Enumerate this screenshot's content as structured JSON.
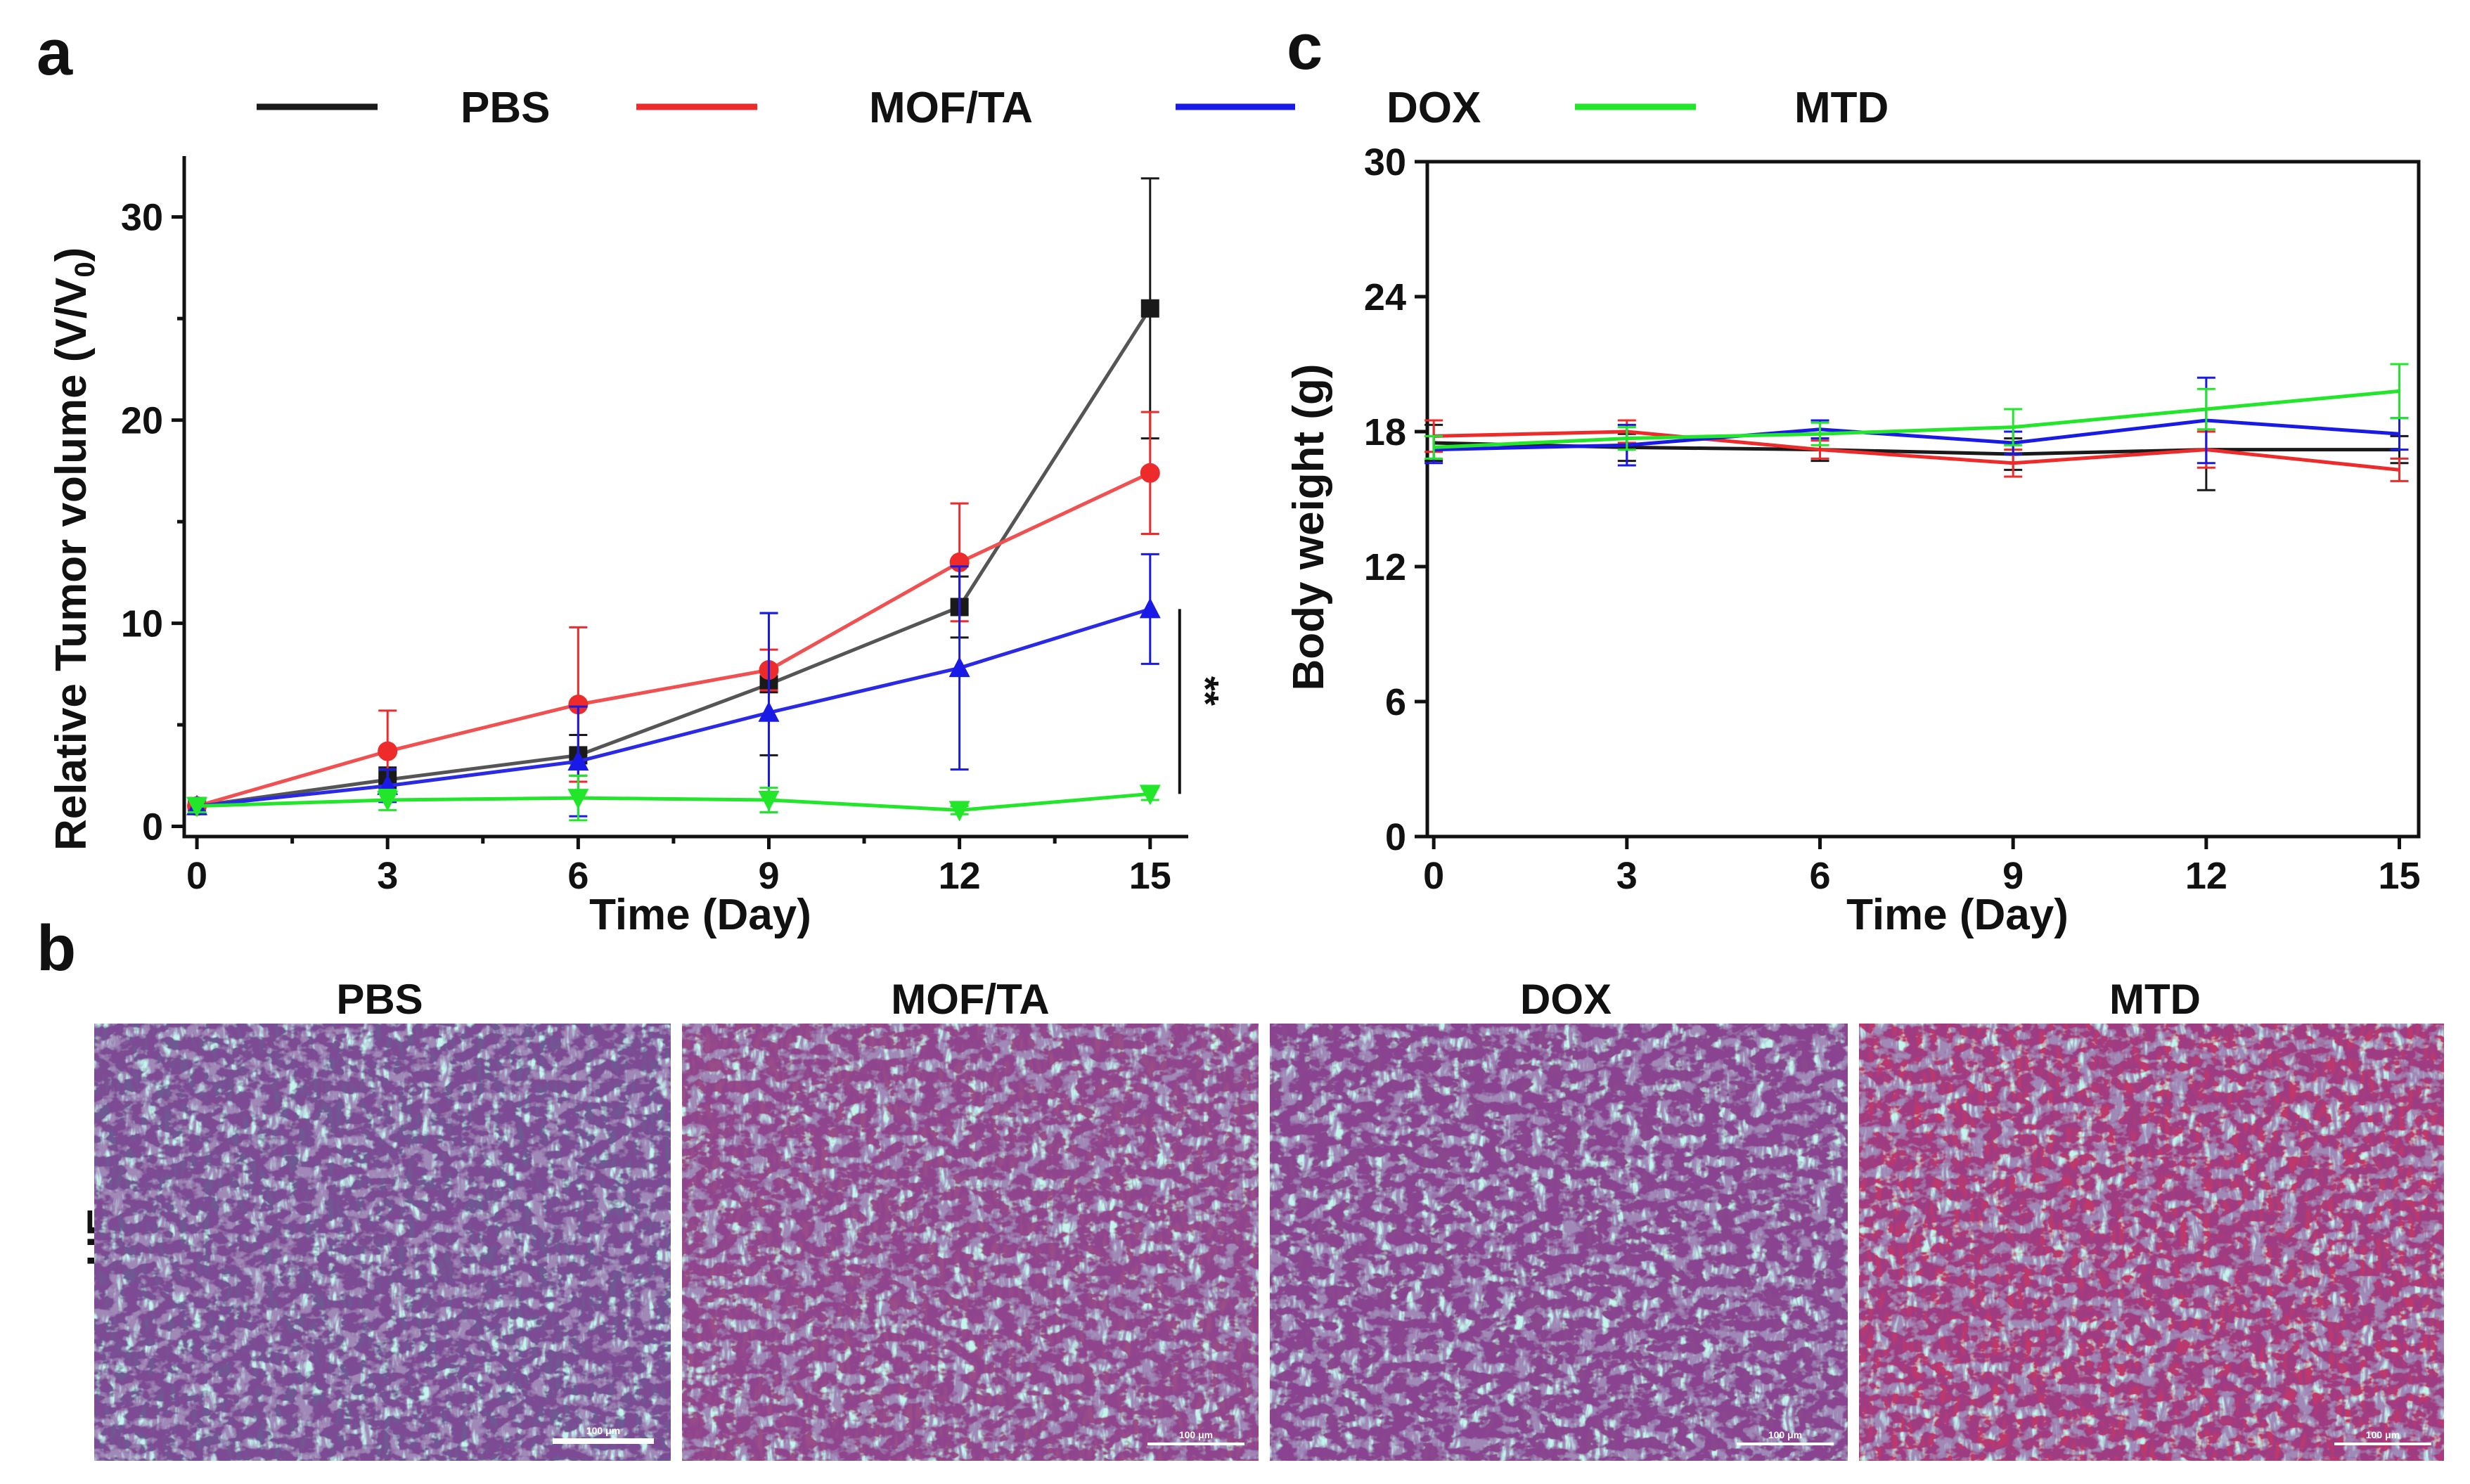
{
  "colors": {
    "PBS": "#1a1a1a",
    "MOF/TA": "#ee2b2b",
    "DOX": "#1a1ae6",
    "MTD": "#22e62a"
  },
  "panels": {
    "a": "a",
    "b": "b",
    "c": "c"
  },
  "legend": [
    "PBS",
    "MOF/TA",
    "DOX",
    "MTD"
  ],
  "chart_data": [
    {
      "id": "a",
      "type": "line",
      "xlabel": "Time (Day)",
      "ylabel_main": "Relative Tumor volume  (V/V",
      "ylabel_sub": "0",
      "ylabel_end": ")",
      "x": [
        0,
        3,
        6,
        9,
        12,
        15
      ],
      "xlim": [
        -0.2,
        15.6
      ],
      "ylim": [
        -0.5,
        33
      ],
      "xticks": [
        "0",
        "3",
        "6",
        "9",
        "12",
        "15"
      ],
      "yticks": [
        "0",
        "10",
        "20",
        "30"
      ],
      "ytick_values": [
        0,
        10,
        20,
        30
      ],
      "significance": "**",
      "series": [
        {
          "name": "PBS",
          "marker": "square",
          "values": [
            1.0,
            2.3,
            3.5,
            7.0,
            10.8,
            25.5
          ],
          "errors": [
            0.3,
            0.6,
            1.0,
            3.5,
            1.5,
            6.4
          ]
        },
        {
          "name": "MOF/TA",
          "marker": "circle",
          "values": [
            1.0,
            3.7,
            6.0,
            7.7,
            13.0,
            17.4
          ],
          "errors": [
            0.3,
            2.0,
            3.8,
            1.0,
            2.9,
            3.0
          ]
        },
        {
          "name": "DOX",
          "marker": "triangle-up",
          "values": [
            1.0,
            2.0,
            3.2,
            5.6,
            7.8,
            10.7
          ],
          "errors": [
            0.3,
            0.8,
            2.7,
            4.9,
            5.0,
            2.7
          ]
        },
        {
          "name": "MTD",
          "marker": "triangle-down",
          "values": [
            1.0,
            1.3,
            1.4,
            1.3,
            0.8,
            1.6
          ],
          "errors": [
            0.3,
            0.5,
            1.1,
            0.6,
            0.2,
            0.3
          ]
        }
      ]
    },
    {
      "id": "c",
      "type": "line",
      "xlabel": "Time (Day)",
      "ylabel": "Body weight (g)",
      "x": [
        0,
        3,
        6,
        9,
        12,
        15
      ],
      "xlim": [
        -0.1,
        15.3
      ],
      "ylim": [
        0,
        30
      ],
      "xticks": [
        "0",
        "3",
        "6",
        "9",
        "12",
        "15"
      ],
      "yticks": [
        "0",
        "6",
        "12",
        "18",
        "24",
        "30"
      ],
      "ytick_values": [
        0,
        6,
        12,
        18,
        24,
        30
      ],
      "series": [
        {
          "name": "PBS",
          "values": [
            17.5,
            17.3,
            17.2,
            17.0,
            17.2,
            17.2
          ],
          "errors": [
            0.8,
            0.6,
            0.5,
            0.7,
            1.8,
            0.6
          ]
        },
        {
          "name": "MOF/TA",
          "values": [
            17.8,
            18.0,
            17.2,
            16.6,
            17.2,
            16.3
          ],
          "errors": [
            0.7,
            0.5,
            0.4,
            0.6,
            0.8,
            0.5
          ]
        },
        {
          "name": "DOX",
          "values": [
            17.2,
            17.4,
            18.1,
            17.5,
            18.5,
            17.9
          ],
          "errors": [
            0.6,
            0.9,
            0.4,
            0.5,
            1.9,
            0.7
          ]
        },
        {
          "name": "MTD",
          "values": [
            17.3,
            17.7,
            17.9,
            18.2,
            19.0,
            19.8
          ],
          "errors": [
            0.5,
            0.5,
            0.5,
            0.8,
            0.9,
            1.2
          ]
        }
      ]
    }
  ],
  "histology": {
    "row_label": "HE",
    "titles": [
      "PBS",
      "MOF/TA",
      "DOX",
      "MTD"
    ],
    "scale_bar": "100 μm",
    "tints": [
      "#6e5a93",
      "#9a4e86",
      "#8a4a8c",
      "#c0386b"
    ]
  }
}
